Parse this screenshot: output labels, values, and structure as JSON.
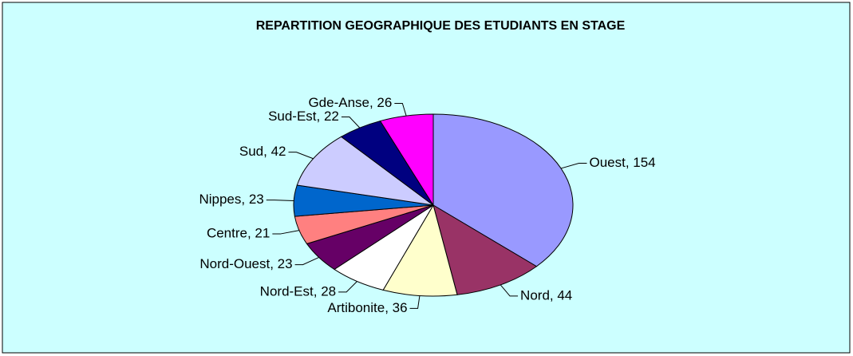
{
  "chart_data": {
    "type": "pie",
    "title": "REPARTITION GEOGRAPHIQUE DES ETUDIANTS EN STAGE",
    "values": [
      154,
      44,
      36,
      28,
      23,
      21,
      23,
      42,
      22,
      26
    ],
    "value_labels": [
      "Ouest, 154",
      "Nord, 44",
      "Artibonite, 36",
      "Nord-Est, 28",
      "Nord-Ouest, 23",
      "Centre, 21",
      "Nippes, 23",
      "Sud, 42",
      "Sud-Est, 22",
      "Gde-Anse, 26"
    ],
    "colors": [
      "#9999ff",
      "#993366",
      "#ffffcc",
      "#ffffff",
      "#660066",
      "#ff8080",
      "#0066cc",
      "#ccccff",
      "#000080",
      "#ff00ff"
    ]
  }
}
